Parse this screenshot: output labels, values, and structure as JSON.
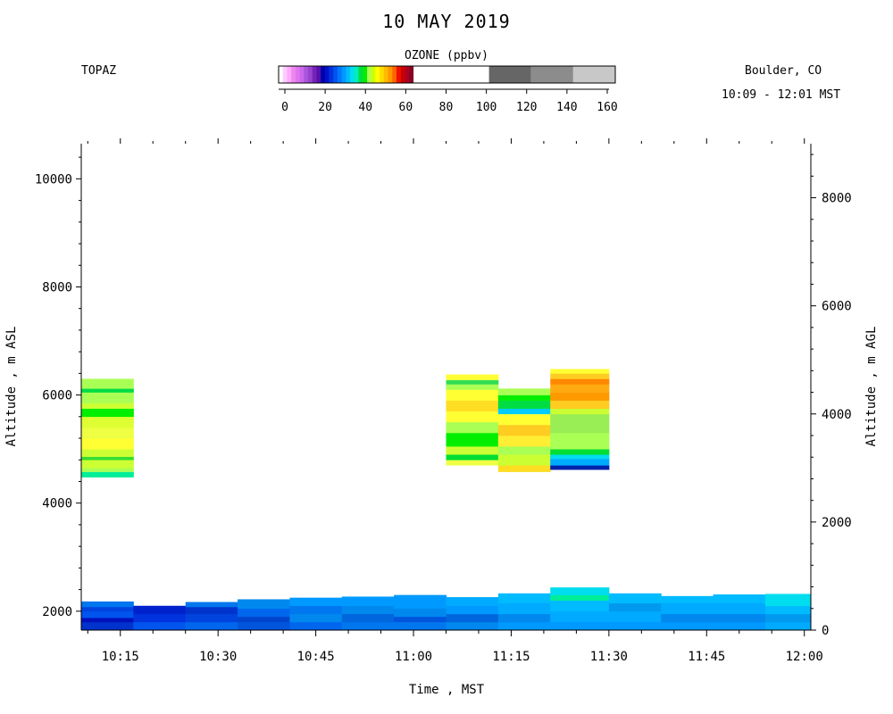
{
  "header": {
    "title": "10 MAY 2019",
    "left_label": "TOPAZ",
    "right_label": "Boulder, CO",
    "time_range": "10:09 - 12:01 MST"
  },
  "colorbar": {
    "title": "OZONE (ppbv)",
    "ticks": [
      "0",
      "20",
      "40",
      "60",
      "80",
      "100",
      "120",
      "140",
      "160"
    ],
    "bands": [
      {
        "from": 0,
        "to": 2,
        "color": "#ffffff"
      },
      {
        "from": 2,
        "to": 4,
        "color": "#ffccff"
      },
      {
        "from": 4,
        "to": 6,
        "color": "#ffaaff"
      },
      {
        "from": 6,
        "to": 8,
        "color": "#ee88ee"
      },
      {
        "from": 8,
        "to": 10,
        "color": "#dd77ee"
      },
      {
        "from": 10,
        "to": 12,
        "color": "#cc66ee"
      },
      {
        "from": 12,
        "to": 14,
        "color": "#aa55dd"
      },
      {
        "from": 14,
        "to": 16,
        "color": "#9944cc"
      },
      {
        "from": 16,
        "to": 18,
        "color": "#7722bb"
      },
      {
        "from": 18,
        "to": 20,
        "color": "#5511aa"
      },
      {
        "from": 20,
        "to": 22,
        "color": "#0000aa"
      },
      {
        "from": 22,
        "to": 24,
        "color": "#0011cc"
      },
      {
        "from": 24,
        "to": 26,
        "color": "#0033dd"
      },
      {
        "from": 26,
        "to": 28,
        "color": "#0055ee"
      },
      {
        "from": 28,
        "to": 30,
        "color": "#0077ff"
      },
      {
        "from": 30,
        "to": 32,
        "color": "#0099ff"
      },
      {
        "from": 32,
        "to": 34,
        "color": "#00bbff"
      },
      {
        "from": 34,
        "to": 36,
        "color": "#00ddee"
      },
      {
        "from": 36,
        "to": 38,
        "color": "#00eebb"
      },
      {
        "from": 38,
        "to": 40,
        "color": "#00dd44"
      },
      {
        "from": 40,
        "to": 42,
        "color": "#00ee00"
      },
      {
        "from": 42,
        "to": 44,
        "color": "#aaff55"
      },
      {
        "from": 44,
        "to": 46,
        "color": "#ccff00"
      },
      {
        "from": 46,
        "to": 48,
        "color": "#ffff00"
      },
      {
        "from": 48,
        "to": 50,
        "color": "#ffdd00"
      },
      {
        "from": 50,
        "to": 52,
        "color": "#ffbb00"
      },
      {
        "from": 52,
        "to": 54,
        "color": "#ff9900"
      },
      {
        "from": 54,
        "to": 56,
        "color": "#ff6600"
      },
      {
        "from": 56,
        "to": 58,
        "color": "#ee1100"
      },
      {
        "from": 58,
        "to": 60,
        "color": "#cc0000"
      },
      {
        "from": 60,
        "to": 62,
        "color": "#aa0022"
      },
      {
        "from": 62,
        "to": 64,
        "color": "#880022"
      }
    ],
    "grey_bands": [
      {
        "from": 100,
        "to": 120,
        "color": "#666666"
      },
      {
        "from": 120,
        "to": 140,
        "color": "#8c8c8c"
      },
      {
        "from": 140,
        "to": 160,
        "color": "#c8c8c8"
      }
    ]
  },
  "chart_data": {
    "type": "heatmap",
    "xlabel": "Time , MST",
    "ylabel_left": "Altitude , m ASL",
    "ylabel_right": "Altitude , m AGL",
    "x_ticks": [
      "10:15",
      "10:30",
      "10:45",
      "11:00",
      "11:15",
      "11:30",
      "11:45",
      "12:00"
    ],
    "x_range_minutes": [
      "10:09",
      "12:01"
    ],
    "y_left_ticks": [
      2000,
      4000,
      6000,
      8000,
      10000
    ],
    "y_left_range": [
      1650,
      10650
    ],
    "y_right_ticks": [
      0,
      2000,
      4000,
      6000,
      8000
    ],
    "y_right_offset": 1650,
    "profiles": [
      {
        "start": "10:09",
        "end": "10:17",
        "upper": {
          "bottom": 4480,
          "top": 6300,
          "layers": [
            {
              "top": 4580,
              "color": "#00ee99"
            },
            {
              "top": 4650,
              "color": "#aaff55"
            },
            {
              "top": 4800,
              "color": "#ccff33"
            },
            {
              "top": 4860,
              "color": "#33dd33"
            },
            {
              "top": 5000,
              "color": "#ccff33"
            },
            {
              "top": 5200,
              "color": "#ffff33"
            },
            {
              "top": 5400,
              "color": "#eeff44"
            },
            {
              "top": 5600,
              "color": "#ddff33"
            },
            {
              "top": 5750,
              "color": "#00ee00"
            },
            {
              "top": 5850,
              "color": "#ccff33"
            },
            {
              "top": 6050,
              "color": "#aaff55"
            },
            {
              "top": 6120,
              "color": "#00dd44"
            },
            {
              "top": 6300,
              "color": "#aaff55"
            }
          ]
        },
        "lower": {
          "top": 2180,
          "layers": [
            {
              "top": 1800,
              "color": "#0033cc"
            },
            {
              "top": 1880,
              "color": "#0011bb"
            },
            {
              "top": 2000,
              "color": "#0055ee"
            },
            {
              "top": 2080,
              "color": "#0044dd"
            },
            {
              "top": 2180,
              "color": "#0077ee"
            }
          ]
        }
      },
      {
        "start": "10:17",
        "end": "10:25",
        "lower": {
          "top": 2100,
          "layers": [
            {
              "top": 1800,
              "color": "#0055ee"
            },
            {
              "top": 1950,
              "color": "#0033dd"
            },
            {
              "top": 2100,
              "color": "#0022cc"
            }
          ]
        }
      },
      {
        "start": "10:25",
        "end": "10:33",
        "lower": {
          "top": 2170,
          "layers": [
            {
              "top": 1800,
              "color": "#0066ee"
            },
            {
              "top": 1950,
              "color": "#0044dd"
            },
            {
              "top": 2080,
              "color": "#0033cc"
            },
            {
              "top": 2170,
              "color": "#0077ee"
            }
          ]
        }
      },
      {
        "start": "10:33",
        "end": "10:41",
        "lower": {
          "top": 2220,
          "layers": [
            {
              "top": 1800,
              "color": "#0055dd"
            },
            {
              "top": 1900,
              "color": "#0044cc"
            },
            {
              "top": 2050,
              "color": "#0066ee"
            },
            {
              "top": 2220,
              "color": "#0088ee"
            }
          ]
        }
      },
      {
        "start": "10:41",
        "end": "10:49",
        "lower": {
          "top": 2250,
          "layers": [
            {
              "top": 1800,
              "color": "#0066ee"
            },
            {
              "top": 1950,
              "color": "#0088ee"
            },
            {
              "top": 2100,
              "color": "#0077ee"
            },
            {
              "top": 2250,
              "color": "#0099ff"
            }
          ]
        }
      },
      {
        "start": "10:49",
        "end": "10:57",
        "lower": {
          "top": 2270,
          "layers": [
            {
              "top": 1800,
              "color": "#0077ee"
            },
            {
              "top": 1950,
              "color": "#0066dd"
            },
            {
              "top": 2100,
              "color": "#0088ee"
            },
            {
              "top": 2270,
              "color": "#0099ff"
            }
          ]
        }
      },
      {
        "start": "10:57",
        "end": "11:05",
        "lower": {
          "top": 2300,
          "layers": [
            {
              "top": 1800,
              "color": "#0077ee"
            },
            {
              "top": 1900,
              "color": "#0055dd"
            },
            {
              "top": 2050,
              "color": "#0088ee"
            },
            {
              "top": 2300,
              "color": "#0099ff"
            }
          ]
        }
      },
      {
        "start": "11:05",
        "end": "11:13",
        "upper": {
          "bottom": 4700,
          "top": 6380,
          "layers": [
            {
              "top": 4800,
              "color": "#eeff44"
            },
            {
              "top": 4900,
              "color": "#00dd33"
            },
            {
              "top": 5050,
              "color": "#ccff33"
            },
            {
              "top": 5300,
              "color": "#00ee00"
            },
            {
              "top": 5500,
              "color": "#aaff55"
            },
            {
              "top": 5700,
              "color": "#ffff33"
            },
            {
              "top": 5900,
              "color": "#ffdd22"
            },
            {
              "top": 6100,
              "color": "#ffff33"
            },
            {
              "top": 6200,
              "color": "#aaff55"
            },
            {
              "top": 6280,
              "color": "#33dd55"
            },
            {
              "top": 6380,
              "color": "#ffff33"
            }
          ]
        },
        "lower": {
          "top": 2260,
          "layers": [
            {
              "top": 1800,
              "color": "#0088ee"
            },
            {
              "top": 1950,
              "color": "#0066dd"
            },
            {
              "top": 2100,
              "color": "#0099ff"
            },
            {
              "top": 2260,
              "color": "#00aaff"
            }
          ]
        }
      },
      {
        "start": "11:13",
        "end": "11:21",
        "upper": {
          "bottom": 4580,
          "top": 6120,
          "layers": [
            {
              "top": 4700,
              "color": "#ffdd22"
            },
            {
              "top": 4900,
              "color": "#ccff33"
            },
            {
              "top": 5050,
              "color": "#aaff55"
            },
            {
              "top": 5250,
              "color": "#ffee33"
            },
            {
              "top": 5450,
              "color": "#ffcc22"
            },
            {
              "top": 5650,
              "color": "#ffff33"
            },
            {
              "top": 5750,
              "color": "#00ccff"
            },
            {
              "top": 5900,
              "color": "#00dd44"
            },
            {
              "top": 6000,
              "color": "#00ee00"
            },
            {
              "top": 6120,
              "color": "#aaff55"
            }
          ]
        },
        "lower": {
          "top": 2330,
          "layers": [
            {
              "top": 1800,
              "color": "#0099ff"
            },
            {
              "top": 1950,
              "color": "#0088ee"
            },
            {
              "top": 2150,
              "color": "#00aaff"
            },
            {
              "top": 2330,
              "color": "#00bbff"
            }
          ]
        }
      },
      {
        "start": "11:21",
        "end": "11:30",
        "upper": {
          "bottom": 4620,
          "top": 6480,
          "layers": [
            {
              "top": 4700,
              "color": "#0022aa"
            },
            {
              "top": 4820,
              "color": "#00aaff"
            },
            {
              "top": 4900,
              "color": "#00ddee"
            },
            {
              "top": 5000,
              "color": "#00dd33"
            },
            {
              "top": 5300,
              "color": "#aaff55"
            },
            {
              "top": 5650,
              "color": "#99ee55"
            },
            {
              "top": 5750,
              "color": "#ccff33"
            },
            {
              "top": 5900,
              "color": "#ffcc22"
            },
            {
              "top": 6050,
              "color": "#ff9900"
            },
            {
              "top": 6200,
              "color": "#ffaa11"
            },
            {
              "top": 6300,
              "color": "#ff8800"
            },
            {
              "top": 6400,
              "color": "#ffcc22"
            },
            {
              "top": 6480,
              "color": "#ffff33"
            }
          ]
        },
        "lower": {
          "top": 2440,
          "layers": [
            {
              "top": 1800,
              "color": "#0099ff"
            },
            {
              "top": 2000,
              "color": "#00aaff"
            },
            {
              "top": 2200,
              "color": "#00bbff"
            },
            {
              "top": 2300,
              "color": "#00ee99"
            },
            {
              "top": 2440,
              "color": "#00ddee"
            }
          ]
        }
      },
      {
        "start": "11:30",
        "end": "11:38",
        "lower": {
          "top": 2330,
          "layers": [
            {
              "top": 1800,
              "color": "#0099ff"
            },
            {
              "top": 2000,
              "color": "#00aaff"
            },
            {
              "top": 2150,
              "color": "#0099ee"
            },
            {
              "top": 2330,
              "color": "#00bbff"
            }
          ]
        }
      },
      {
        "start": "11:38",
        "end": "11:46",
        "lower": {
          "top": 2280,
          "layers": [
            {
              "top": 1800,
              "color": "#0099ff"
            },
            {
              "top": 1950,
              "color": "#0088ee"
            },
            {
              "top": 2150,
              "color": "#00aaff"
            },
            {
              "top": 2280,
              "color": "#00bbff"
            }
          ]
        }
      },
      {
        "start": "11:46",
        "end": "11:54",
        "lower": {
          "top": 2310,
          "layers": [
            {
              "top": 1800,
              "color": "#0099ff"
            },
            {
              "top": 1950,
              "color": "#0088ee"
            },
            {
              "top": 2150,
              "color": "#00aaff"
            },
            {
              "top": 2310,
              "color": "#00bbff"
            }
          ]
        }
      },
      {
        "start": "11:54",
        "end": "12:01",
        "lower": {
          "top": 2320,
          "layers": [
            {
              "top": 1800,
              "color": "#00aaff"
            },
            {
              "top": 1950,
              "color": "#0099ee"
            },
            {
              "top": 2100,
              "color": "#00bbff"
            },
            {
              "top": 2320,
              "color": "#00ddee"
            }
          ]
        }
      }
    ]
  }
}
